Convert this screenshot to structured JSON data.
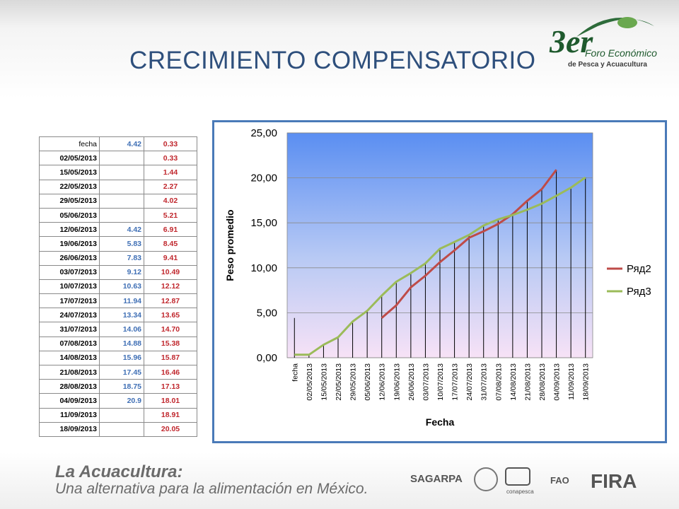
{
  "header": {
    "title": "CRECIMIENTO COMPENSATORIO",
    "logo_number": "3er",
    "logo_line1": "Foro Económico",
    "logo_line2": "de Pesca y Acuacultura"
  },
  "table": {
    "rows": [
      [
        "fecha",
        "4.42",
        "0.33"
      ],
      [
        "02/05/2013",
        null,
        "0.33"
      ],
      [
        "15/05/2013",
        null,
        "1.44"
      ],
      [
        "22/05/2013",
        null,
        "2.27"
      ],
      [
        "29/05/2013",
        null,
        "4.02"
      ],
      [
        "05/06/2013",
        null,
        "5.21"
      ],
      [
        "12/06/2013",
        "4.42",
        "6.91"
      ],
      [
        "19/06/2013",
        "5.83",
        "8.45"
      ],
      [
        "26/06/2013",
        "7.83",
        "9.41"
      ],
      [
        "03/07/2013",
        "9.12",
        "10.49"
      ],
      [
        "10/07/2013",
        "10.63",
        "12.12"
      ],
      [
        "17/07/2013",
        "11.94",
        "12.87"
      ],
      [
        "24/07/2013",
        "13.34",
        "13.65"
      ],
      [
        "31/07/2013",
        "14.06",
        "14.70"
      ],
      [
        "07/08/2013",
        "14.88",
        "15.38"
      ],
      [
        "14/08/2013",
        "15.96",
        "15.87"
      ],
      [
        "21/08/2013",
        "17.45",
        "16.46"
      ],
      [
        "28/08/2013",
        "18.75",
        "17.13"
      ],
      [
        "04/09/2013",
        "20.9",
        "18.01"
      ],
      [
        "11/09/2013",
        null,
        "18.91"
      ],
      [
        "18/09/2013",
        null,
        "20.05"
      ]
    ]
  },
  "chart_data": {
    "type": "line",
    "x_label": "Fecha",
    "y_label": "Peso promedio",
    "categories": [
      "fecha",
      "02/05/2013",
      "15/05/2013",
      "22/05/2013",
      "29/05/2013",
      "05/06/2013",
      "12/06/2013",
      "19/06/2013",
      "26/06/2013",
      "03/07/2013",
      "10/07/2013",
      "17/07/2013",
      "24/07/2013",
      "31/07/2013",
      "07/08/2013",
      "14/08/2013",
      "21/08/2013",
      "28/08/2013",
      "04/09/2013",
      "11/09/2013",
      "18/09/2013"
    ],
    "series": [
      {
        "name": "Ряд2",
        "color": "#be4b48",
        "values": [
          4.42,
          null,
          null,
          null,
          null,
          null,
          4.42,
          5.83,
          7.83,
          9.12,
          10.63,
          11.94,
          13.34,
          14.06,
          14.88,
          15.96,
          17.45,
          18.75,
          20.9,
          null,
          null
        ]
      },
      {
        "name": "Ряд3",
        "color": "#9bbb59",
        "values": [
          0.33,
          0.33,
          1.44,
          2.27,
          4.02,
          5.21,
          6.91,
          8.45,
          9.41,
          10.49,
          12.12,
          12.87,
          13.65,
          14.7,
          15.38,
          15.87,
          16.46,
          17.13,
          18.01,
          18.91,
          20.05
        ]
      }
    ],
    "ylim": [
      0,
      25
    ],
    "yticks": [
      {
        "value": 0,
        "label": "0,00"
      },
      {
        "value": 5,
        "label": "5,00"
      },
      {
        "value": 10,
        "label": "10,00"
      },
      {
        "value": 15,
        "label": "15,00"
      },
      {
        "value": 20,
        "label": "20,00"
      },
      {
        "value": 25,
        "label": "25,00"
      }
    ],
    "grid": true,
    "drop_lines": true,
    "legend": "right"
  },
  "footer": {
    "line1": "La Acuacultura:",
    "line2": "Una alternativa para la alimentación en México.",
    "logo1": "SAGARPA",
    "logo2": "conapesca",
    "logo3": "FAO",
    "logo4": "FIRA"
  }
}
